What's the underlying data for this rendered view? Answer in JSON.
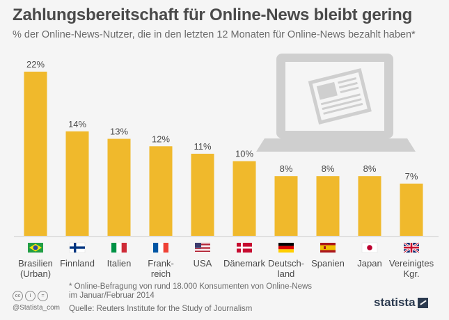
{
  "title": "Zahlungsbereitschaft für Online-News bleibt gering",
  "subtitle": "% der Online-News-Nutzer, die in den letzten 12 Monaten für Online-News bezahlt haben*",
  "footnote": "* Online-Befragung von rund 18.000 Konsumenten von Online-News im Januar/Februar 2014",
  "source": "Quelle: Reuters Institute for the Study of Journalism",
  "handle": "@Statista_com",
  "logo": "statista",
  "colors": {
    "bar": "#f0b92c",
    "text": "#4a4a4a",
    "icon": "#cfcfcf"
  },
  "chart_data": {
    "type": "bar",
    "categories": [
      "Brasilien (Urban)",
      "Finnland",
      "Italien",
      "Frank-reich",
      "USA",
      "Dänemark",
      "Deutsch-land",
      "Spanien",
      "Japan",
      "Vereinigtes Kgr."
    ],
    "category_lines": [
      [
        "Brasilien",
        "(Urban)"
      ],
      [
        "Finnland"
      ],
      [
        "Italien"
      ],
      [
        "Frank-",
        "reich"
      ],
      [
        "USA"
      ],
      [
        "Dänemark"
      ],
      [
        "Deutsch-",
        "land"
      ],
      [
        "Spanien"
      ],
      [
        "Japan"
      ],
      [
        "Vereinigtes",
        "Kgr."
      ]
    ],
    "values": [
      22,
      14,
      13,
      12,
      11,
      10,
      8,
      8,
      8,
      7
    ],
    "value_labels": [
      "22%",
      "14%",
      "13%",
      "12%",
      "11%",
      "10%",
      "8%",
      "8%",
      "8%",
      "7%"
    ],
    "flags": [
      "brazil",
      "finland",
      "italy",
      "france",
      "usa",
      "denmark",
      "germany",
      "spain",
      "japan",
      "uk"
    ],
    "ylim": [
      0,
      22
    ],
    "grid": false,
    "legend": "none"
  }
}
